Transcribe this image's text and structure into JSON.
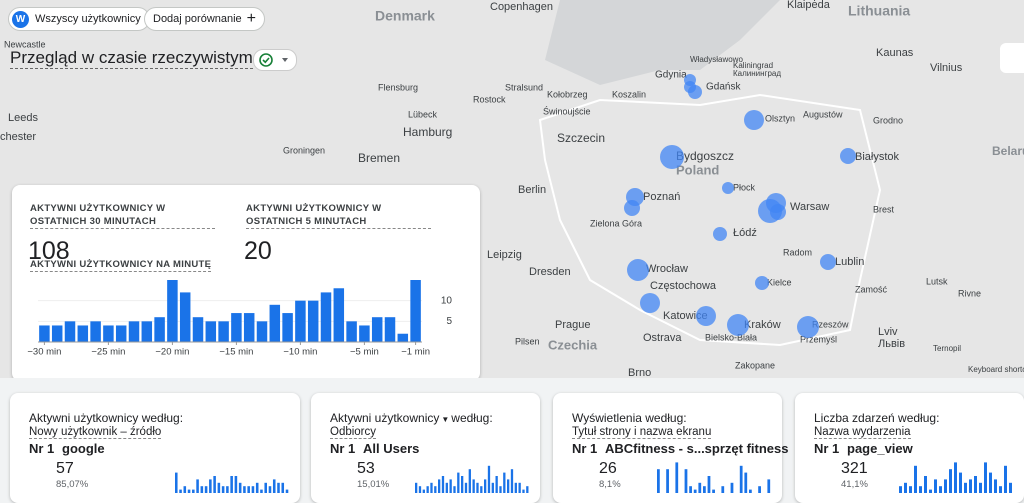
{
  "header": {
    "user_chip_icon": "W",
    "user_chip": "Wszyscy użytkownicy",
    "compare_chip": "Dodaj porównanie",
    "compare_icon": "+",
    "title": "Przegląd w czasie rzeczywistym"
  },
  "map": {
    "labels": [
      "Denmark",
      "Copenhagen",
      "Klaipėda",
      "Lithuania",
      "Newcastle",
      "Leeds",
      "chester",
      "Flensburg",
      "Stralsund",
      "Kołobrzeg",
      "Koszalin",
      "Władysławowo",
      "Gdynia",
      "Gdańsk",
      "Kaliningrad",
      "Калининград",
      "Kaunas",
      "Vilnius",
      "Lübeck",
      "Rostock",
      "Świnoujście",
      "Hamburg",
      "Szczecin",
      "Olsztyn",
      "Augustów",
      "Grodno",
      "Bremen",
      "Groningen",
      "Bydgoszcz",
      "Białystok",
      "Poland",
      "Berlin",
      "Poznań",
      "Płock",
      "Warsaw",
      "Zielona Góra",
      "Łódź",
      "Brest",
      "Leipzig",
      "Radom",
      "Lublin",
      "Dresden",
      "Wrocław",
      "Częstochowa",
      "Kielce",
      "Zamość",
      "Lutsk",
      "Rivne",
      "Prague",
      "Katowice",
      "Kraków",
      "Rzeszów",
      "Lviv",
      "Львів",
      "Czechia",
      "Ostrava",
      "Bielsko-Biała",
      "Przemyśl",
      "Ternopil",
      "Brno",
      "Zakopane",
      "Keyboard shortcuts",
      "Pilsen",
      "Belarus"
    ]
  },
  "realtime": {
    "metric_30": "AKTYWNI UŻYTKOWNICY W OSTATNICH 30 MINUTACH",
    "value_30": "108",
    "metric_5": "AKTYWNI UŻYTKOWNICY W OSTATNICH 5 MINUTACH",
    "value_5": "20",
    "per_minute": "AKTYWNI UŻYTKOWNICY NA MINUTĘ"
  },
  "chart_data": {
    "type": "bar",
    "color": "#1a73e8",
    "x": [
      -30,
      -29,
      -28,
      -27,
      -26,
      -25,
      -24,
      -23,
      -22,
      -21,
      -20,
      -19,
      -18,
      -17,
      -16,
      -15,
      -14,
      -13,
      -12,
      -11,
      -10,
      -9,
      -8,
      -7,
      -6,
      -5,
      -4,
      -3,
      -2,
      -1
    ],
    "values": [
      4,
      4,
      5,
      4,
      5,
      4,
      4,
      5,
      5,
      6,
      15,
      12,
      6,
      5,
      5,
      7,
      7,
      5,
      9,
      7,
      10,
      10,
      12,
      13,
      5,
      4,
      6,
      6,
      2,
      15
    ],
    "xlim": [
      -30.5,
      -0.5
    ],
    "ylim": [
      0,
      15
    ],
    "xticks": [
      {
        "value": -30,
        "label": "−30 min"
      },
      {
        "value": -25,
        "label": "−25 min"
      },
      {
        "value": -20,
        "label": "−20 min"
      },
      {
        "value": -15,
        "label": "−15 min"
      },
      {
        "value": -10,
        "label": "−10 min"
      },
      {
        "value": -5,
        "label": "−5 min"
      },
      {
        "value": -1,
        "label": "−1 min"
      }
    ],
    "yticks": [
      5,
      10
    ]
  },
  "cards": [
    {
      "title": "Aktywni użytkownicy według:",
      "dimension": "Nowy użytkownik – źródło",
      "rank": "Nr 1",
      "top": "google",
      "value": "57",
      "share": "85,07%",
      "spark": {
        "ylim": [
          0,
          10
        ],
        "values": [
          6,
          1,
          2,
          1,
          1,
          4,
          2,
          2,
          4,
          5,
          3,
          2,
          2,
          5,
          5,
          3,
          2,
          2,
          2,
          3,
          1,
          3,
          2,
          4,
          3,
          3,
          1
        ]
      }
    },
    {
      "title": "Aktywni użytkownicy",
      "title_2": "według:",
      "dimension": "Odbiorcy",
      "rank": "Nr 1",
      "top": "All Users",
      "value": "53",
      "share": "15,01%",
      "spark": {
        "ylim": [
          0,
          10
        ],
        "values": [
          3,
          2,
          1,
          2,
          3,
          2,
          4,
          5,
          3,
          4,
          2,
          6,
          5,
          3,
          7,
          4,
          3,
          2,
          4,
          8,
          3,
          5,
          2,
          6,
          4,
          7,
          3,
          3,
          1,
          2
        ]
      }
    },
    {
      "title": "Wyświetlenia według:",
      "dimension": "Tytuł strony i nazwa ekranu",
      "rank": "Nr 1",
      "top": "ABCfitness - s...sprzęt fitness",
      "value": "26",
      "share": "8,1%",
      "spark": {
        "ylim": [
          0,
          10
        ],
        "values": [
          7,
          0,
          7,
          0,
          9,
          0,
          7,
          2,
          1,
          3,
          2,
          5,
          1,
          0,
          2,
          0,
          3,
          0,
          8,
          6,
          1,
          0,
          2,
          0,
          4
        ]
      }
    },
    {
      "title": "Liczba zdarzeń według:",
      "dimension": "Nazwa wydarzenia",
      "rank": "Nr 1",
      "top": "page_view",
      "value": "321",
      "share": "41,1%",
      "spark": {
        "ylim": [
          0,
          10
        ],
        "values": [
          2,
          3,
          2,
          8,
          2,
          5,
          1,
          4,
          2,
          4,
          7,
          9,
          6,
          3,
          4,
          5,
          3,
          9,
          6,
          4,
          2,
          8,
          3
        ]
      }
    }
  ]
}
